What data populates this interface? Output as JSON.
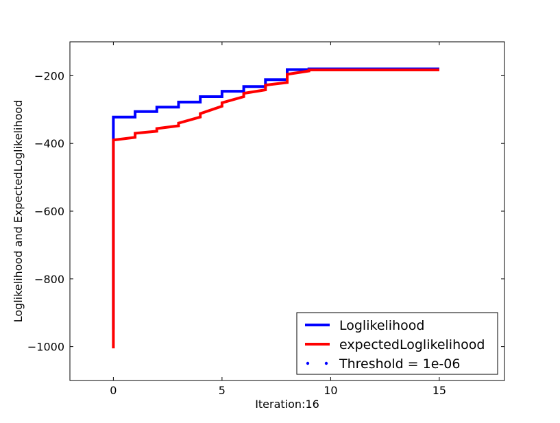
{
  "chart_data": {
    "type": "line",
    "xlabel": "Iteration:16",
    "ylabel": "Loglikelihood and ExpectedLoglikelihood",
    "xlim": [
      -2,
      18
    ],
    "ylim": [
      -1100,
      -100
    ],
    "xticks": [
      0,
      5,
      10,
      15
    ],
    "yticks": [
      -1000,
      -800,
      -600,
      -400,
      -200
    ],
    "xtick_labels": [
      "0",
      "5",
      "10",
      "15"
    ],
    "ytick_labels": [
      "−1000",
      "−800",
      "−600",
      "−400",
      "−200"
    ],
    "grid": false,
    "legend_position": "lower-right",
    "series": [
      {
        "name": "Loglikelihood",
        "color": "#0000ff",
        "style": "solid",
        "points": [
          [
            0,
            -950
          ],
          [
            0,
            -322
          ],
          [
            1,
            -322
          ],
          [
            1,
            -306
          ],
          [
            2,
            -306
          ],
          [
            2,
            -293
          ],
          [
            3,
            -293
          ],
          [
            3,
            -278
          ],
          [
            4,
            -278
          ],
          [
            4,
            -262
          ],
          [
            5,
            -262
          ],
          [
            5,
            -246
          ],
          [
            6,
            -246
          ],
          [
            6,
            -232
          ],
          [
            7,
            -232
          ],
          [
            7,
            -212
          ],
          [
            8,
            -212
          ],
          [
            8,
            -182
          ],
          [
            9,
            -182
          ],
          [
            9,
            -180
          ],
          [
            15,
            -180
          ]
        ]
      },
      {
        "name": "expectedLoglikelihood",
        "color": "#ff0000",
        "style": "solid",
        "points": [
          [
            0,
            -1005
          ],
          [
            0,
            -390
          ],
          [
            1,
            -382
          ],
          [
            1,
            -370
          ],
          [
            2,
            -364
          ],
          [
            2,
            -356
          ],
          [
            3,
            -348
          ],
          [
            3,
            -340
          ],
          [
            4,
            -322
          ],
          [
            4,
            -312
          ],
          [
            5,
            -290
          ],
          [
            5,
            -280
          ],
          [
            6,
            -262
          ],
          [
            6,
            -252
          ],
          [
            7,
            -242
          ],
          [
            7,
            -228
          ],
          [
            8,
            -220
          ],
          [
            8,
            -196
          ],
          [
            9,
            -186
          ],
          [
            9,
            -183
          ],
          [
            15,
            -183
          ]
        ]
      },
      {
        "name": "Threshold = 1e-06",
        "color": "#0000ff",
        "style": "dotted",
        "points": []
      }
    ]
  }
}
